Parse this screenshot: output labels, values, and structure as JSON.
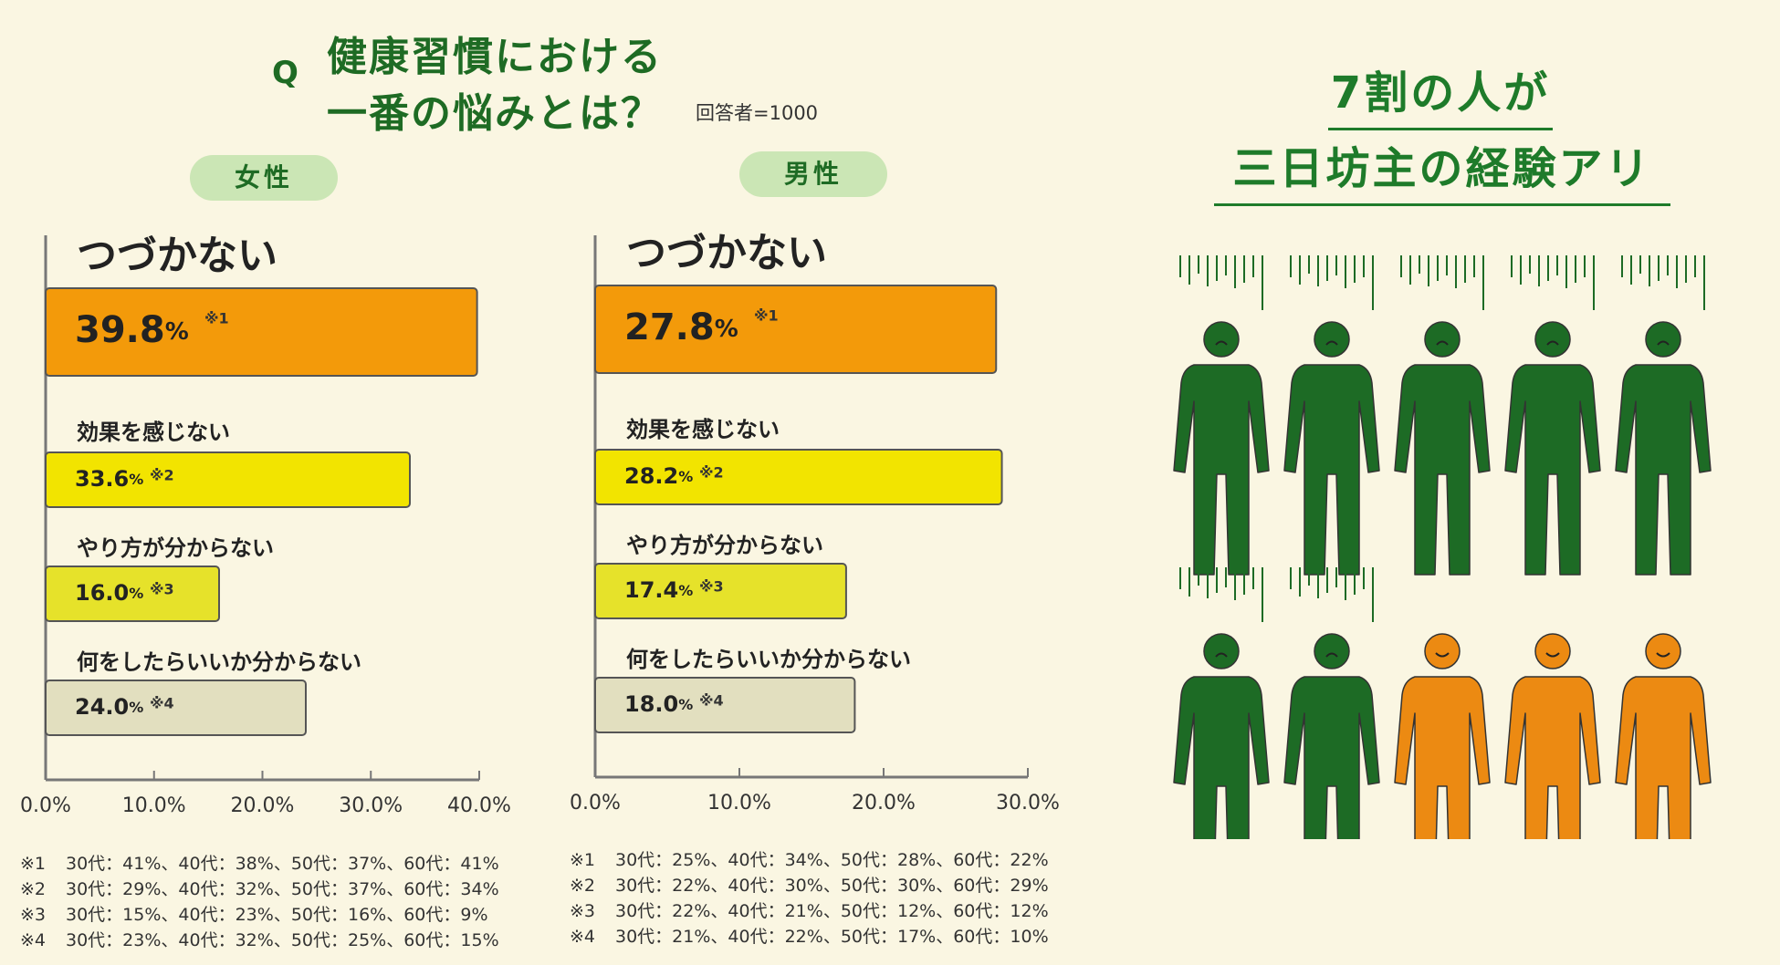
{
  "question": {
    "mark": "Q",
    "line1": "健康習慣における",
    "line2": "一番の悩みとは？",
    "respondents": "回答者=1000"
  },
  "headline": {
    "line1": "7割の人が",
    "line2": "三日坊主の経験アリ"
  },
  "chart_data": [
    {
      "type": "bar",
      "orientation": "horizontal",
      "title": "女性",
      "categories": [
        "つづかない",
        "効果を感じない",
        "やり方が分からない",
        "何をしたらいいか分からない"
      ],
      "values": [
        39.8,
        33.6,
        16.0,
        24.0
      ],
      "value_labels": [
        "39.8%",
        "33.6%",
        "16.0%",
        "24.0%"
      ],
      "note_refs": [
        "※1",
        "※2",
        "※3",
        "※4"
      ],
      "bar_colors": [
        "#f39a0a",
        "#f2e400",
        "#e6e22a",
        "#e2dfbf"
      ],
      "xlim": [
        0,
        40
      ],
      "ticks": [
        0,
        10,
        20,
        30,
        40
      ],
      "tick_labels": [
        "0.0%",
        "10.0%",
        "20.0%",
        "30.0%",
        "40.0%"
      ],
      "notes": [
        {
          "mark": "※1",
          "text": "30代：41%、40代：38%、50代：37%、60代：41%"
        },
        {
          "mark": "※2",
          "text": "30代：29%、40代：32%、50代：37%、60代：34%"
        },
        {
          "mark": "※3",
          "text": "30代：15%、40代：23%、50代：16%、60代：9%"
        },
        {
          "mark": "※4",
          "text": "30代：23%、40代：32%、50代：25%、60代：15%"
        }
      ]
    },
    {
      "type": "bar",
      "orientation": "horizontal",
      "title": "男性",
      "categories": [
        "つづかない",
        "効果を感じない",
        "やり方が分からない",
        "何をしたらいいか分からない"
      ],
      "values": [
        27.8,
        28.2,
        17.4,
        18.0
      ],
      "value_labels": [
        "27.8%",
        "28.2%",
        "17.4%",
        "18.0%"
      ],
      "note_refs": [
        "※1",
        "※2",
        "※3",
        "※4"
      ],
      "bar_colors": [
        "#f39a0a",
        "#f2e400",
        "#e6e22a",
        "#e2dfbf"
      ],
      "xlim": [
        0,
        30
      ],
      "ticks": [
        0,
        10,
        20,
        30
      ],
      "tick_labels": [
        "0.0%",
        "10.0%",
        "20.0%",
        "30.0%"
      ],
      "notes": [
        {
          "mark": "※1",
          "text": "30代：25%、40代：34%、50代：28%、60代：22%"
        },
        {
          "mark": "※2",
          "text": "30代：22%、40代：30%、50代：30%、60代：29%"
        },
        {
          "mark": "※3",
          "text": "30代：22%、40代：21%、50代：12%、60代：12%"
        },
        {
          "mark": "※4",
          "text": "30代：21%、40代：22%、50代：17%、60代：10%"
        }
      ]
    },
    {
      "type": "pictogram",
      "total": 10,
      "highlighted": 7,
      "colors": {
        "highlighted": "#1d6b25",
        "other": "#ec8a12"
      }
    }
  ]
}
